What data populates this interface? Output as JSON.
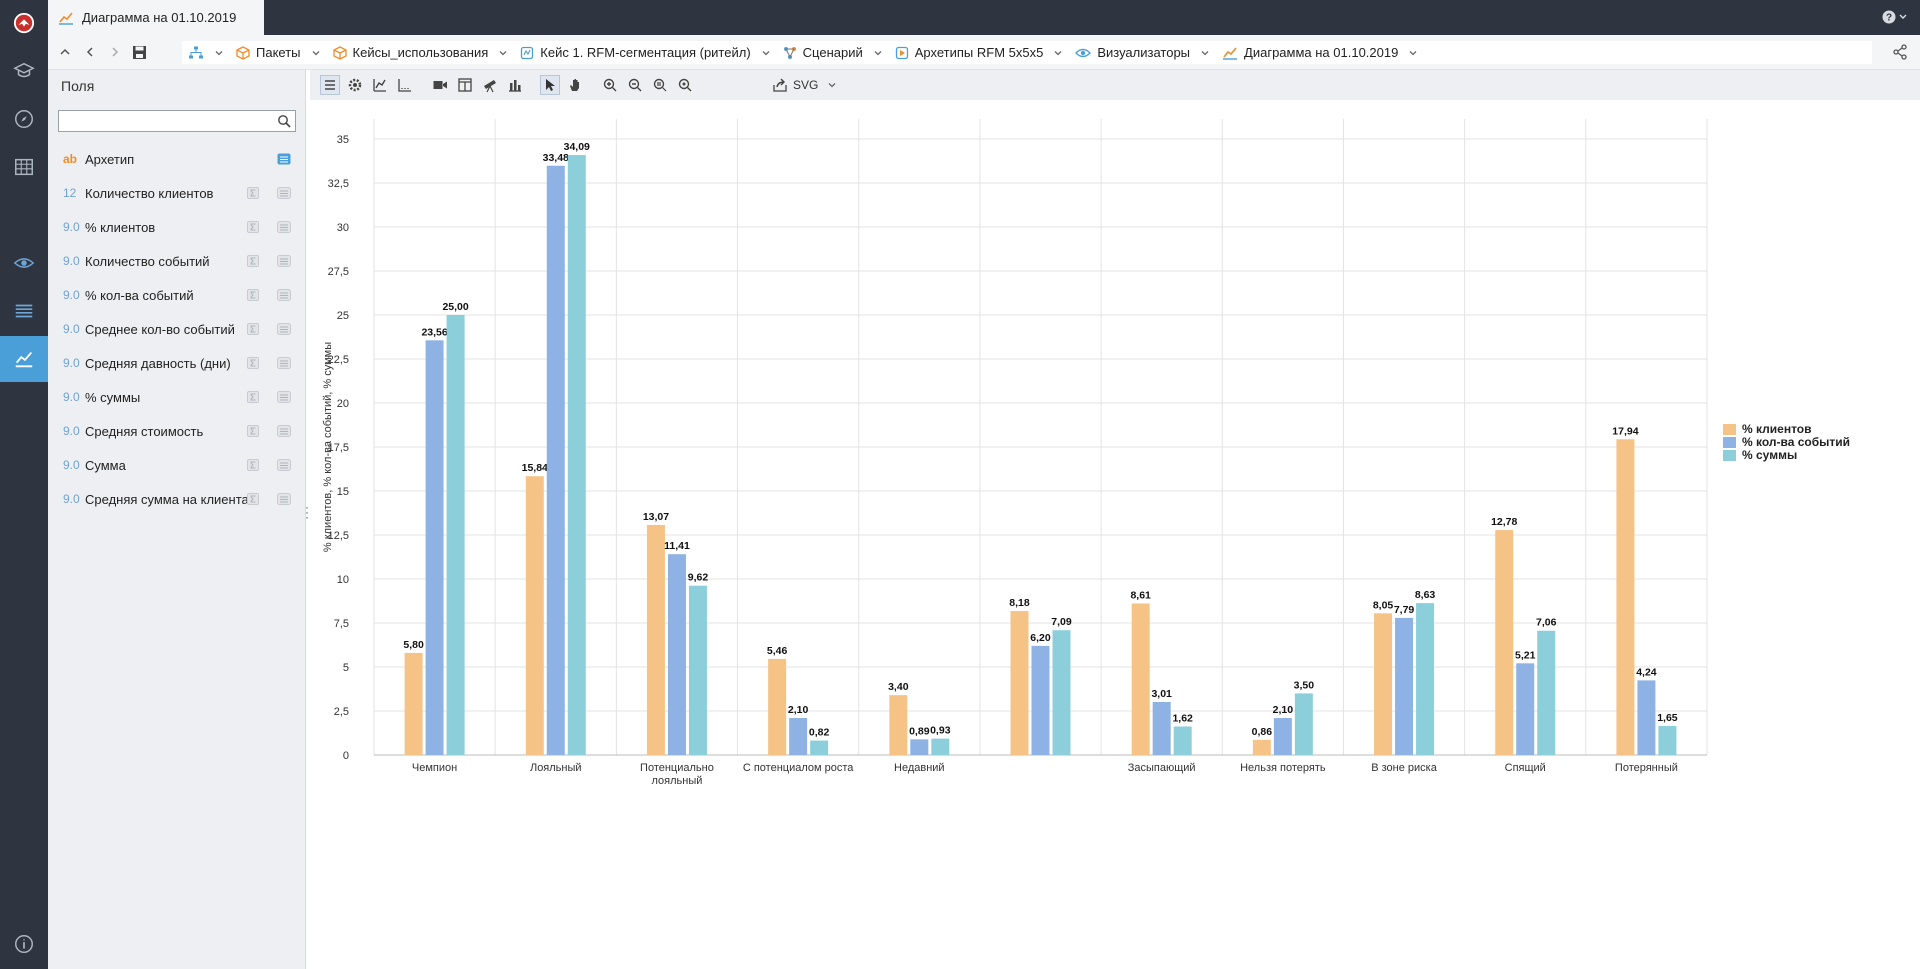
{
  "document": {
    "tab_title": "Диаграмма на 01.10.2019"
  },
  "breadcrumbs": [
    {
      "label": ""
    },
    {
      "label": "Пакеты"
    },
    {
      "label": "Кейсы_использования"
    },
    {
      "label": "Кейс 1. RFM-сегментация (ритейл)"
    },
    {
      "label": "Сценарий"
    },
    {
      "label": "Архетипы RFM 5x5x5"
    },
    {
      "label": "Визуализаторы"
    },
    {
      "label": "Диаграмма на 01.10.2019"
    }
  ],
  "panel": {
    "title": "Поля",
    "search_placeholder": "",
    "fields": [
      {
        "type": "ab",
        "name": "Архетип"
      },
      {
        "type": "12",
        "name": "Количество клиентов"
      },
      {
        "type": "9.0",
        "name": "% клиентов"
      },
      {
        "type": "9.0",
        "name": "Количество событий"
      },
      {
        "type": "9.0",
        "name": "% кол-ва событий"
      },
      {
        "type": "9.0",
        "name": "Среднее кол-во событий"
      },
      {
        "type": "9.0",
        "name": "Средняя давность (дни)"
      },
      {
        "type": "9.0",
        "name": "% суммы"
      },
      {
        "type": "9.0",
        "name": "Средняя стоимость"
      },
      {
        "type": "9.0",
        "name": "Сумма"
      },
      {
        "type": "9.0",
        "name": "Средняя сумма на клиента"
      }
    ]
  },
  "toolbar": {
    "export_label": "SVG"
  },
  "colors": {
    "series1": "#f6c387",
    "series2": "#8db2e3",
    "series3": "#8ccfdb",
    "accent": "#4a9fd8"
  },
  "chart_data": {
    "type": "bar",
    "ylabel": "% клиентов, % кол-ва событий, % суммы",
    "ylim": [
      0,
      35
    ],
    "yticks": [
      "0",
      "2,5",
      "5",
      "7,5",
      "10",
      "12,5",
      "15",
      "17,5",
      "20",
      "22,5",
      "25",
      "27,5",
      "30",
      "32,5",
      "35"
    ],
    "grid": true,
    "legend_position": "right",
    "categories": [
      "Чемпион",
      "Лояльный",
      "Потенциально лояльный",
      "С потенциалом роста",
      "Недавний",
      "",
      "Засыпающий",
      "Нельзя потерять",
      "В зоне риска",
      "Спящий",
      "Потерянный"
    ],
    "series": [
      {
        "name": "% клиентов",
        "values": [
          5.8,
          15.84,
          13.07,
          5.46,
          3.4,
          8.18,
          8.61,
          0.86,
          8.05,
          12.78,
          17.94
        ],
        "labels": [
          "5,80",
          "15,84",
          "13,07",
          "5,46",
          "3,40",
          "8,18",
          "8,61",
          "0,86",
          "8,05",
          "12,78",
          "17,94"
        ]
      },
      {
        "name": "% кол-ва событий",
        "values": [
          23.56,
          33.48,
          11.41,
          2.1,
          0.89,
          6.2,
          3.01,
          2.1,
          7.79,
          5.21,
          4.24
        ],
        "labels": [
          "23,56",
          "33,48",
          "11,41",
          "2,10",
          "0,89",
          "6,20",
          "3,01",
          "2,10",
          "7,79",
          "5,21",
          "4,24"
        ]
      },
      {
        "name": "% суммы",
        "values": [
          25.0,
          34.09,
          9.62,
          0.82,
          0.93,
          7.09,
          1.62,
          3.5,
          8.63,
          7.06,
          1.65
        ],
        "labels": [
          "25,00",
          "34,09",
          "9,62",
          "0,82",
          "0,93",
          "7,09",
          "1,62",
          "3,50",
          "8,63",
          "7,06",
          "1,65"
        ]
      }
    ]
  }
}
